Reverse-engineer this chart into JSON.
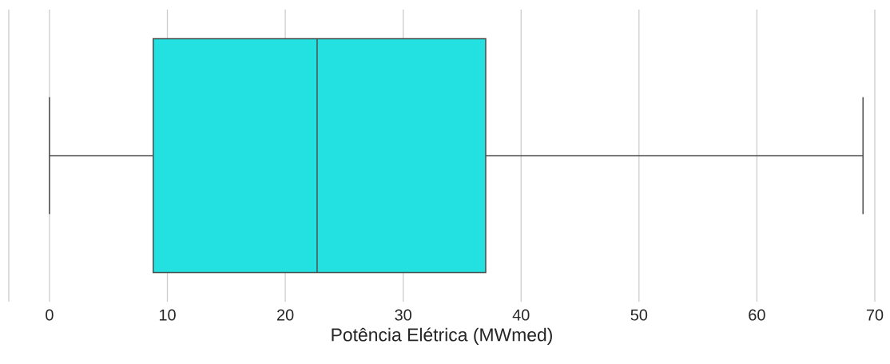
{
  "chart_data": {
    "type": "box",
    "orientation": "horizontal",
    "xlabel": "Potência Elétrica (MWmed)",
    "categories": [
      null
    ],
    "boxes": [
      {
        "low": 0,
        "q1": 8.8,
        "median": 22.7,
        "q3": 37.0,
        "high": 69.0
      }
    ],
    "color": "#22e1e0",
    "xlim": [
      -3.45,
      70
    ],
    "xticks": [
      0,
      10,
      20,
      30,
      40,
      50,
      60,
      70
    ],
    "grid": "x",
    "tick_labels": "x"
  }
}
